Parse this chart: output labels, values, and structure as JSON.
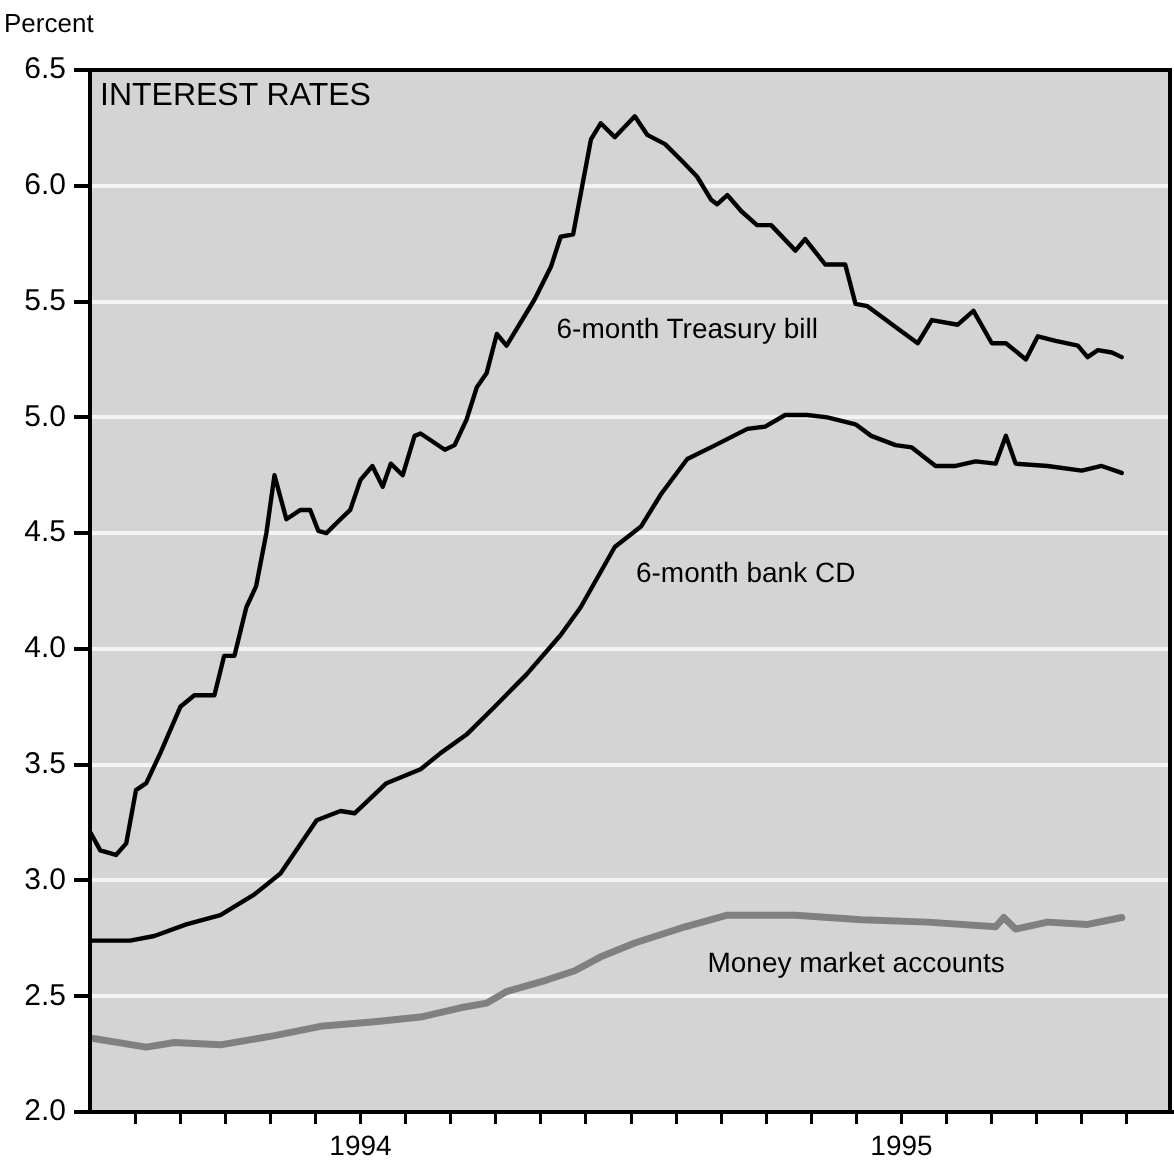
{
  "chart_data": {
    "type": "line",
    "title": "INTEREST RATES",
    "ylabel": "Percent",
    "xlim": [
      1994,
      1996
    ],
    "xticks": [
      {
        "value": 1994.0833,
        "label": null
      },
      {
        "value": 1994.1667,
        "label": null
      },
      {
        "value": 1994.25,
        "label": null
      },
      {
        "value": 1994.3333,
        "label": null
      },
      {
        "value": 1994.4167,
        "label": null
      },
      {
        "value": 1994.5,
        "label": "1994"
      },
      {
        "value": 1994.5833,
        "label": null
      },
      {
        "value": 1994.6667,
        "label": null
      },
      {
        "value": 1994.75,
        "label": null
      },
      {
        "value": 1994.8333,
        "label": null
      },
      {
        "value": 1994.9167,
        "label": null
      },
      {
        "value": 1995,
        "label": null
      },
      {
        "value": 1995.0833,
        "label": null
      },
      {
        "value": 1995.1667,
        "label": null
      },
      {
        "value": 1995.25,
        "label": null
      },
      {
        "value": 1995.3333,
        "label": null
      },
      {
        "value": 1995.4167,
        "label": null
      },
      {
        "value": 1995.5,
        "label": "1995"
      },
      {
        "value": 1995.5833,
        "label": null
      },
      {
        "value": 1995.6667,
        "label": null
      },
      {
        "value": 1995.75,
        "label": null
      },
      {
        "value": 1995.8333,
        "label": null
      },
      {
        "value": 1995.9167,
        "label": null
      }
    ],
    "ylim": [
      2,
      6.5
    ],
    "yticks": [
      {
        "value": 2,
        "label": "2.0"
      },
      {
        "value": 2.5,
        "label": "2.5"
      },
      {
        "value": 3,
        "label": "3.0"
      },
      {
        "value": 3.5,
        "label": "3.5"
      },
      {
        "value": 4,
        "label": "4.0"
      },
      {
        "value": 4.5,
        "label": "4.5"
      },
      {
        "value": 5,
        "label": "5.0"
      },
      {
        "value": 5.5,
        "label": "5.5"
      },
      {
        "value": 6,
        "label": "6.0"
      },
      {
        "value": 6.5,
        "label": "6.5"
      }
    ],
    "grid": "y",
    "legend": false,
    "marker": "none",
    "line_style": "solid",
    "series": [
      {
        "name": "6-month Treasury bill",
        "color": "#000000",
        "x": [
          1994,
          1994.019,
          1994.048,
          1994.067,
          1994.085,
          1994.104,
          1994.13,
          1994.167,
          1994.193,
          1994.23,
          1994.248,
          1994.267,
          1994.289,
          1994.307,
          1994.326,
          1994.341,
          1994.363,
          1994.389,
          1994.407,
          1994.422,
          1994.437,
          1994.463,
          1994.481,
          1994.5,
          1994.522,
          1994.541,
          1994.556,
          1994.578,
          1994.6,
          1994.611,
          1994.656,
          1994.674,
          1994.696,
          1994.715,
          1994.733,
          1994.752,
          1994.77,
          1994.822,
          1994.852,
          1994.87,
          1994.893,
          1994.926,
          1994.944,
          1994.97,
          1995.007,
          1995.03,
          1995.063,
          1995.093,
          1995.122,
          1995.148,
          1995.159,
          1995.178,
          1995.204,
          1995.233,
          1995.259,
          1995.304,
          1995.322,
          1995.359,
          1995.396,
          1995.415,
          1995.437,
          1995.489,
          1995.53,
          1995.556,
          1995.604,
          1995.633,
          1995.667,
          1995.693,
          1995.73,
          1995.752,
          1995.785,
          1995.826,
          1995.844,
          1995.863,
          1995.889,
          1995.907
        ],
        "values": [
          3.21,
          3.13,
          3.11,
          3.16,
          3.39,
          3.42,
          3.55,
          3.75,
          3.8,
          3.8,
          3.97,
          3.97,
          4.18,
          4.27,
          4.5,
          4.75,
          4.56,
          4.6,
          4.6,
          4.51,
          4.5,
          4.56,
          4.6,
          4.73,
          4.79,
          4.7,
          4.8,
          4.75,
          4.92,
          4.93,
          4.86,
          4.88,
          4.99,
          5.13,
          5.19,
          5.36,
          5.31,
          5.51,
          5.65,
          5.78,
          5.79,
          6.2,
          6.27,
          6.21,
          6.3,
          6.22,
          6.18,
          6.11,
          6.04,
          5.94,
          5.92,
          5.96,
          5.89,
          5.83,
          5.83,
          5.72,
          5.77,
          5.66,
          5.66,
          5.49,
          5.48,
          5.39,
          5.32,
          5.42,
          5.4,
          5.46,
          5.32,
          5.32,
          5.25,
          5.35,
          5.33,
          5.31,
          5.26,
          5.29,
          5.28,
          5.26
        ]
      },
      {
        "name": "6-month bank CD",
        "color": "#000000",
        "x": [
          1994,
          1994.074,
          1994.119,
          1994.178,
          1994.241,
          1994.304,
          1994.352,
          1994.419,
          1994.463,
          1994.489,
          1994.548,
          1994.611,
          1994.648,
          1994.696,
          1994.748,
          1994.807,
          1994.87,
          1994.907,
          1994.97,
          1995.019,
          1995.056,
          1995.104,
          1995.156,
          1995.215,
          1995.248,
          1995.285,
          1995.326,
          1995.363,
          1995.415,
          1995.444,
          1995.489,
          1995.519,
          1995.563,
          1995.6,
          1995.637,
          1995.674,
          1995.693,
          1995.711,
          1995.77,
          1995.833,
          1995.87,
          1995.907
        ],
        "values": [
          2.74,
          2.74,
          2.76,
          2.81,
          2.85,
          2.94,
          3.03,
          3.26,
          3.3,
          3.29,
          3.42,
          3.48,
          3.55,
          3.63,
          3.75,
          3.89,
          4.06,
          4.18,
          4.44,
          4.53,
          4.67,
          4.82,
          4.88,
          4.95,
          4.96,
          5.01,
          5.01,
          5,
          4.97,
          4.92,
          4.88,
          4.87,
          4.79,
          4.79,
          4.81,
          4.8,
          4.92,
          4.8,
          4.79,
          4.77,
          4.79,
          4.76
        ]
      },
      {
        "name": "Money market accounts",
        "color": "#808080",
        "x": [
          1994,
          1994.104,
          1994.156,
          1994.241,
          1994.341,
          1994.426,
          1994.526,
          1994.611,
          1994.685,
          1994.733,
          1994.77,
          1994.844,
          1994.896,
          1994.944,
          1995.007,
          1995.1,
          1995.178,
          1995.304,
          1995.426,
          1995.548,
          1995.674,
          1995.689,
          1995.711,
          1995.77,
          1995.844,
          1995.907
        ],
        "values": [
          2.32,
          2.28,
          2.3,
          2.29,
          2.33,
          2.37,
          2.39,
          2.41,
          2.45,
          2.47,
          2.52,
          2.57,
          2.61,
          2.67,
          2.73,
          2.8,
          2.85,
          2.85,
          2.83,
          2.82,
          2.8,
          2.84,
          2.79,
          2.82,
          2.81,
          2.84
        ]
      }
    ]
  }
}
